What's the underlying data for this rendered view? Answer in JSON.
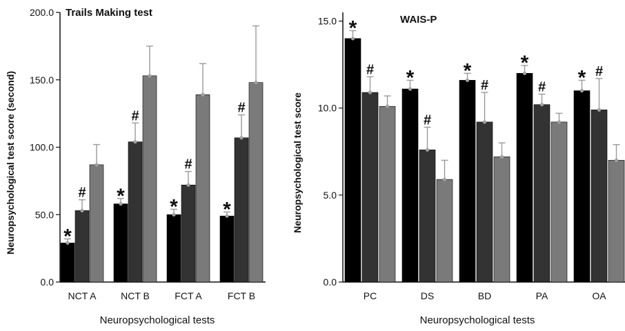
{
  "chart_data": [
    {
      "type": "bar",
      "title": "Trails Making  test",
      "xlabel": "Neuropsychological tests",
      "ylabel": "Neuropsychological test score (second)",
      "ylim": [
        0,
        200
      ],
      "yticks": [
        "0.0",
        "50.0",
        "100.0",
        "150.0",
        "200.0"
      ],
      "categories": [
        "NCT A",
        "NCT B",
        "FCT A",
        "FCT B"
      ],
      "series": [
        {
          "values": [
            29,
            58,
            50,
            49
          ],
          "errors": [
            3,
            4,
            4,
            3
          ],
          "color": "#000000"
        },
        {
          "values": [
            53,
            104,
            72,
            107
          ],
          "errors": [
            8,
            14,
            10,
            17
          ],
          "color": "#333333"
        },
        {
          "values": [
            87,
            153,
            139,
            148
          ],
          "errors": [
            15,
            22,
            23,
            42
          ],
          "color": "#7a7a7a"
        }
      ],
      "markers": [
        [
          "*",
          "#",
          ""
        ],
        [
          "*",
          "#",
          ""
        ],
        [
          "*",
          "#",
          ""
        ],
        [
          "*",
          "#",
          ""
        ]
      ],
      "grid": false
    },
    {
      "type": "bar",
      "title": "WAIS-P",
      "xlabel": "Neuropsychological tests",
      "ylabel": "Neuropsychological test score",
      "ylim": [
        0,
        15.5
      ],
      "yticks": [
        "0.0",
        "5.0",
        "10.0",
        "15.0"
      ],
      "categories": [
        "PC",
        "DS",
        "BD",
        "PA",
        "OA"
      ],
      "series": [
        {
          "values": [
            14.0,
            11.1,
            11.6,
            12.0,
            11.0
          ],
          "errors": [
            0.45,
            0.5,
            0.4,
            0.45,
            0.6
          ],
          "color": "#000000"
        },
        {
          "values": [
            10.9,
            7.6,
            9.2,
            10.2,
            9.9
          ],
          "errors": [
            0.9,
            1.3,
            1.7,
            0.6,
            1.8
          ],
          "color": "#333333"
        },
        {
          "values": [
            10.1,
            5.9,
            7.2,
            9.2,
            7.0
          ],
          "errors": [
            0.6,
            1.1,
            0.8,
            0.5,
            0.9
          ],
          "color": "#7a7a7a"
        }
      ],
      "markers": [
        [
          "*",
          "#",
          ""
        ],
        [
          "*",
          "#",
          ""
        ],
        [
          "*",
          "#",
          ""
        ],
        [
          "*",
          "#",
          ""
        ],
        [
          "*",
          "#",
          ""
        ]
      ],
      "grid": false
    }
  ]
}
